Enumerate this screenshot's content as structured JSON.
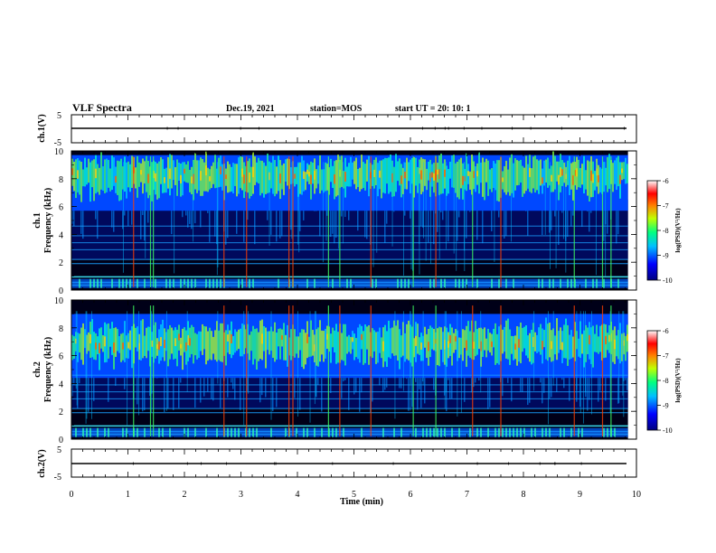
{
  "header": {
    "title": "VLF Spectra",
    "date": "Dec.19, 2021",
    "station": "station=MOS",
    "start": "start  UT =   20: 10: 1"
  },
  "chart_data": [
    {
      "type": "line",
      "name": "ch1-voltage",
      "ylabel": "ch.1(V)",
      "xlim": [
        0,
        10
      ],
      "ylim": [
        -5,
        5
      ],
      "y_ticks": [
        "5",
        "-5"
      ],
      "level": 0
    },
    {
      "type": "heatmap",
      "name": "ch1-spectrogram",
      "ylabel_channel": "ch.1",
      "ylabel": "Frequency (kHz)",
      "xlim": [
        0,
        10
      ],
      "ylim": [
        0,
        10
      ],
      "data_xmax": 9.85,
      "y_ticks": [
        "0",
        "2",
        "4",
        "6",
        "8",
        "10"
      ],
      "band_center_khz": 8.3,
      "colorbar": {
        "label": "log(PSD)(V²/Hz)",
        "range": [
          -10,
          -6
        ],
        "ticks": [
          "-6",
          "-7",
          "-8",
          "-9",
          "-10"
        ]
      }
    },
    {
      "type": "heatmap",
      "name": "ch2-spectrogram",
      "ylabel_channel": "ch.2",
      "ylabel": "Frequency (kHz)",
      "xlim": [
        0,
        10
      ],
      "ylim": [
        0,
        10
      ],
      "data_xmax": 9.85,
      "y_ticks": [
        "0",
        "2",
        "4",
        "6",
        "8",
        "10"
      ],
      "band_center_khz": 7.0,
      "colorbar": {
        "label": "log(PSD)(V²/Hz)",
        "range": [
          -10,
          -6
        ],
        "ticks": [
          "-6",
          "-7",
          "-8",
          "-9",
          "-10"
        ]
      }
    },
    {
      "type": "line",
      "name": "ch2-voltage",
      "ylabel": "ch.2(V)",
      "xlim": [
        0,
        10
      ],
      "ylim": [
        -5,
        5
      ],
      "y_ticks": [
        "5",
        "-5"
      ],
      "level": 0
    }
  ],
  "x_axis": {
    "label": "Time (min)",
    "ticks": [
      "0",
      "1",
      "2",
      "3",
      "4",
      "5",
      "6",
      "7",
      "8",
      "9",
      "10"
    ]
  },
  "colors": {
    "background": "#000000",
    "low": "#00008f",
    "mid": "#00ff80",
    "high": "#ff0000"
  }
}
